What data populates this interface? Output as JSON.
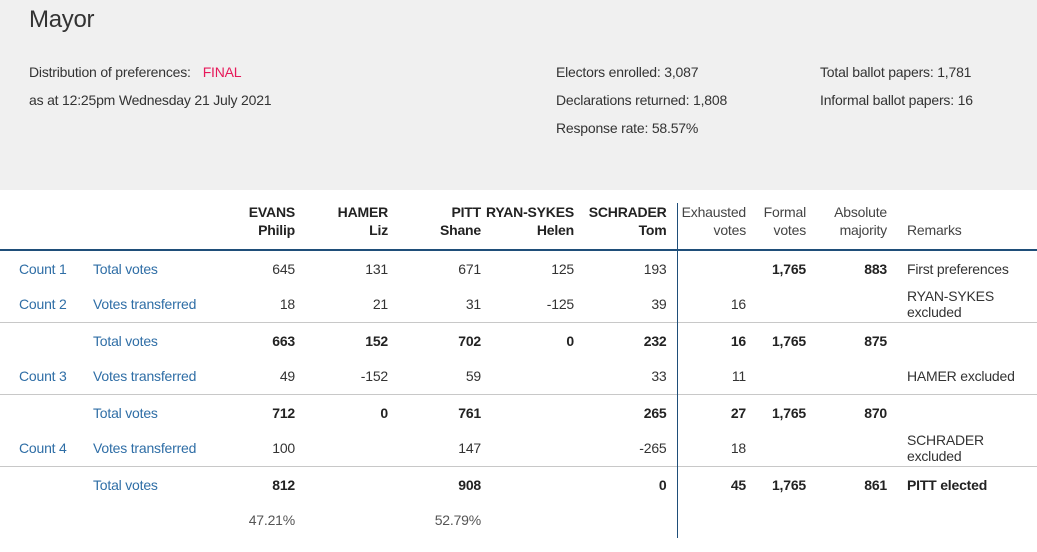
{
  "page": {
    "title": "Mayor",
    "distribution_label": "Distribution of preferences:",
    "distribution_status": "FINAL",
    "as_at": "as at 12:25pm Wednesday 21 July 2021",
    "electors_enrolled": "Electors enrolled: 3,087",
    "declarations_returned": "Declarations returned: 1,808",
    "response_rate": "Response rate: 58.57%",
    "total_ballot_papers": "Total ballot papers: 1,781",
    "informal_ballot_papers": "Informal ballot papers: 16",
    "colors": {
      "accent": "#e6195a",
      "link": "#2f6ea6",
      "rule": "#1f4e79",
      "header_bg": "#f0f0f0"
    }
  },
  "table": {
    "headers": {
      "c1_last": "EVANS",
      "c1_first": "Philip",
      "c2_last": "HAMER",
      "c2_first": "Liz",
      "c3_last": "PITT",
      "c3_first": "Shane",
      "c4_last": "RYAN-SYKES",
      "c4_first": "Helen",
      "c5_last": "SCHRADER",
      "c5_first": "Tom",
      "exh_1": "Exhausted",
      "exh_2": "votes",
      "formal_1": "Formal",
      "formal_2": "votes",
      "abs_1": "Absolute",
      "abs_2": "majority",
      "remarks": "Remarks"
    },
    "rows": [
      {
        "count": "Count 1",
        "label": "Total votes",
        "c1": "645",
        "c2": "131",
        "c3": "671",
        "c4": "125",
        "c5": "193",
        "exh": "",
        "formal": "1,765",
        "abs": "883",
        "remark": "First preferences"
      },
      {
        "count": "Count 2",
        "label": "Votes transferred",
        "c1": "18",
        "c2": "21",
        "c3": "31",
        "c4": "-125",
        "c5": "39",
        "exh": "16",
        "formal": "",
        "abs": "",
        "remark": "RYAN-SYKES excluded"
      },
      {
        "count": "",
        "label": "Total votes",
        "c1": "663",
        "c2": "152",
        "c3": "702",
        "c4": "0",
        "c5": "232",
        "exh": "16",
        "formal": "1,765",
        "abs": "875",
        "remark": ""
      },
      {
        "count": "Count 3",
        "label": "Votes transferred",
        "c1": "49",
        "c2": "-152",
        "c3": "59",
        "c4": "",
        "c5": "33",
        "exh": "11",
        "formal": "",
        "abs": "",
        "remark": "HAMER excluded"
      },
      {
        "count": "",
        "label": "Total votes",
        "c1": "712",
        "c2": "0",
        "c3": "761",
        "c4": "",
        "c5": "265",
        "exh": "27",
        "formal": "1,765",
        "abs": "870",
        "remark": ""
      },
      {
        "count": "Count 4",
        "label": "Votes transferred",
        "c1": "100",
        "c2": "",
        "c3": "147",
        "c4": "",
        "c5": "-265",
        "exh": "18",
        "formal": "",
        "abs": "",
        "remark": "SCHRADER excluded"
      },
      {
        "count": "",
        "label": "Total votes",
        "c1": "812",
        "c2": "",
        "c3": "908",
        "c4": "",
        "c5": "0",
        "exh": "45",
        "formal": "1,765",
        "abs": "861",
        "remark": "PITT elected"
      },
      {
        "count": "",
        "label": "",
        "c1": "47.21%",
        "c2": "",
        "c3": "52.79%",
        "c4": "",
        "c5": "",
        "exh": "",
        "formal": "",
        "abs": "",
        "remark": ""
      }
    ]
  }
}
